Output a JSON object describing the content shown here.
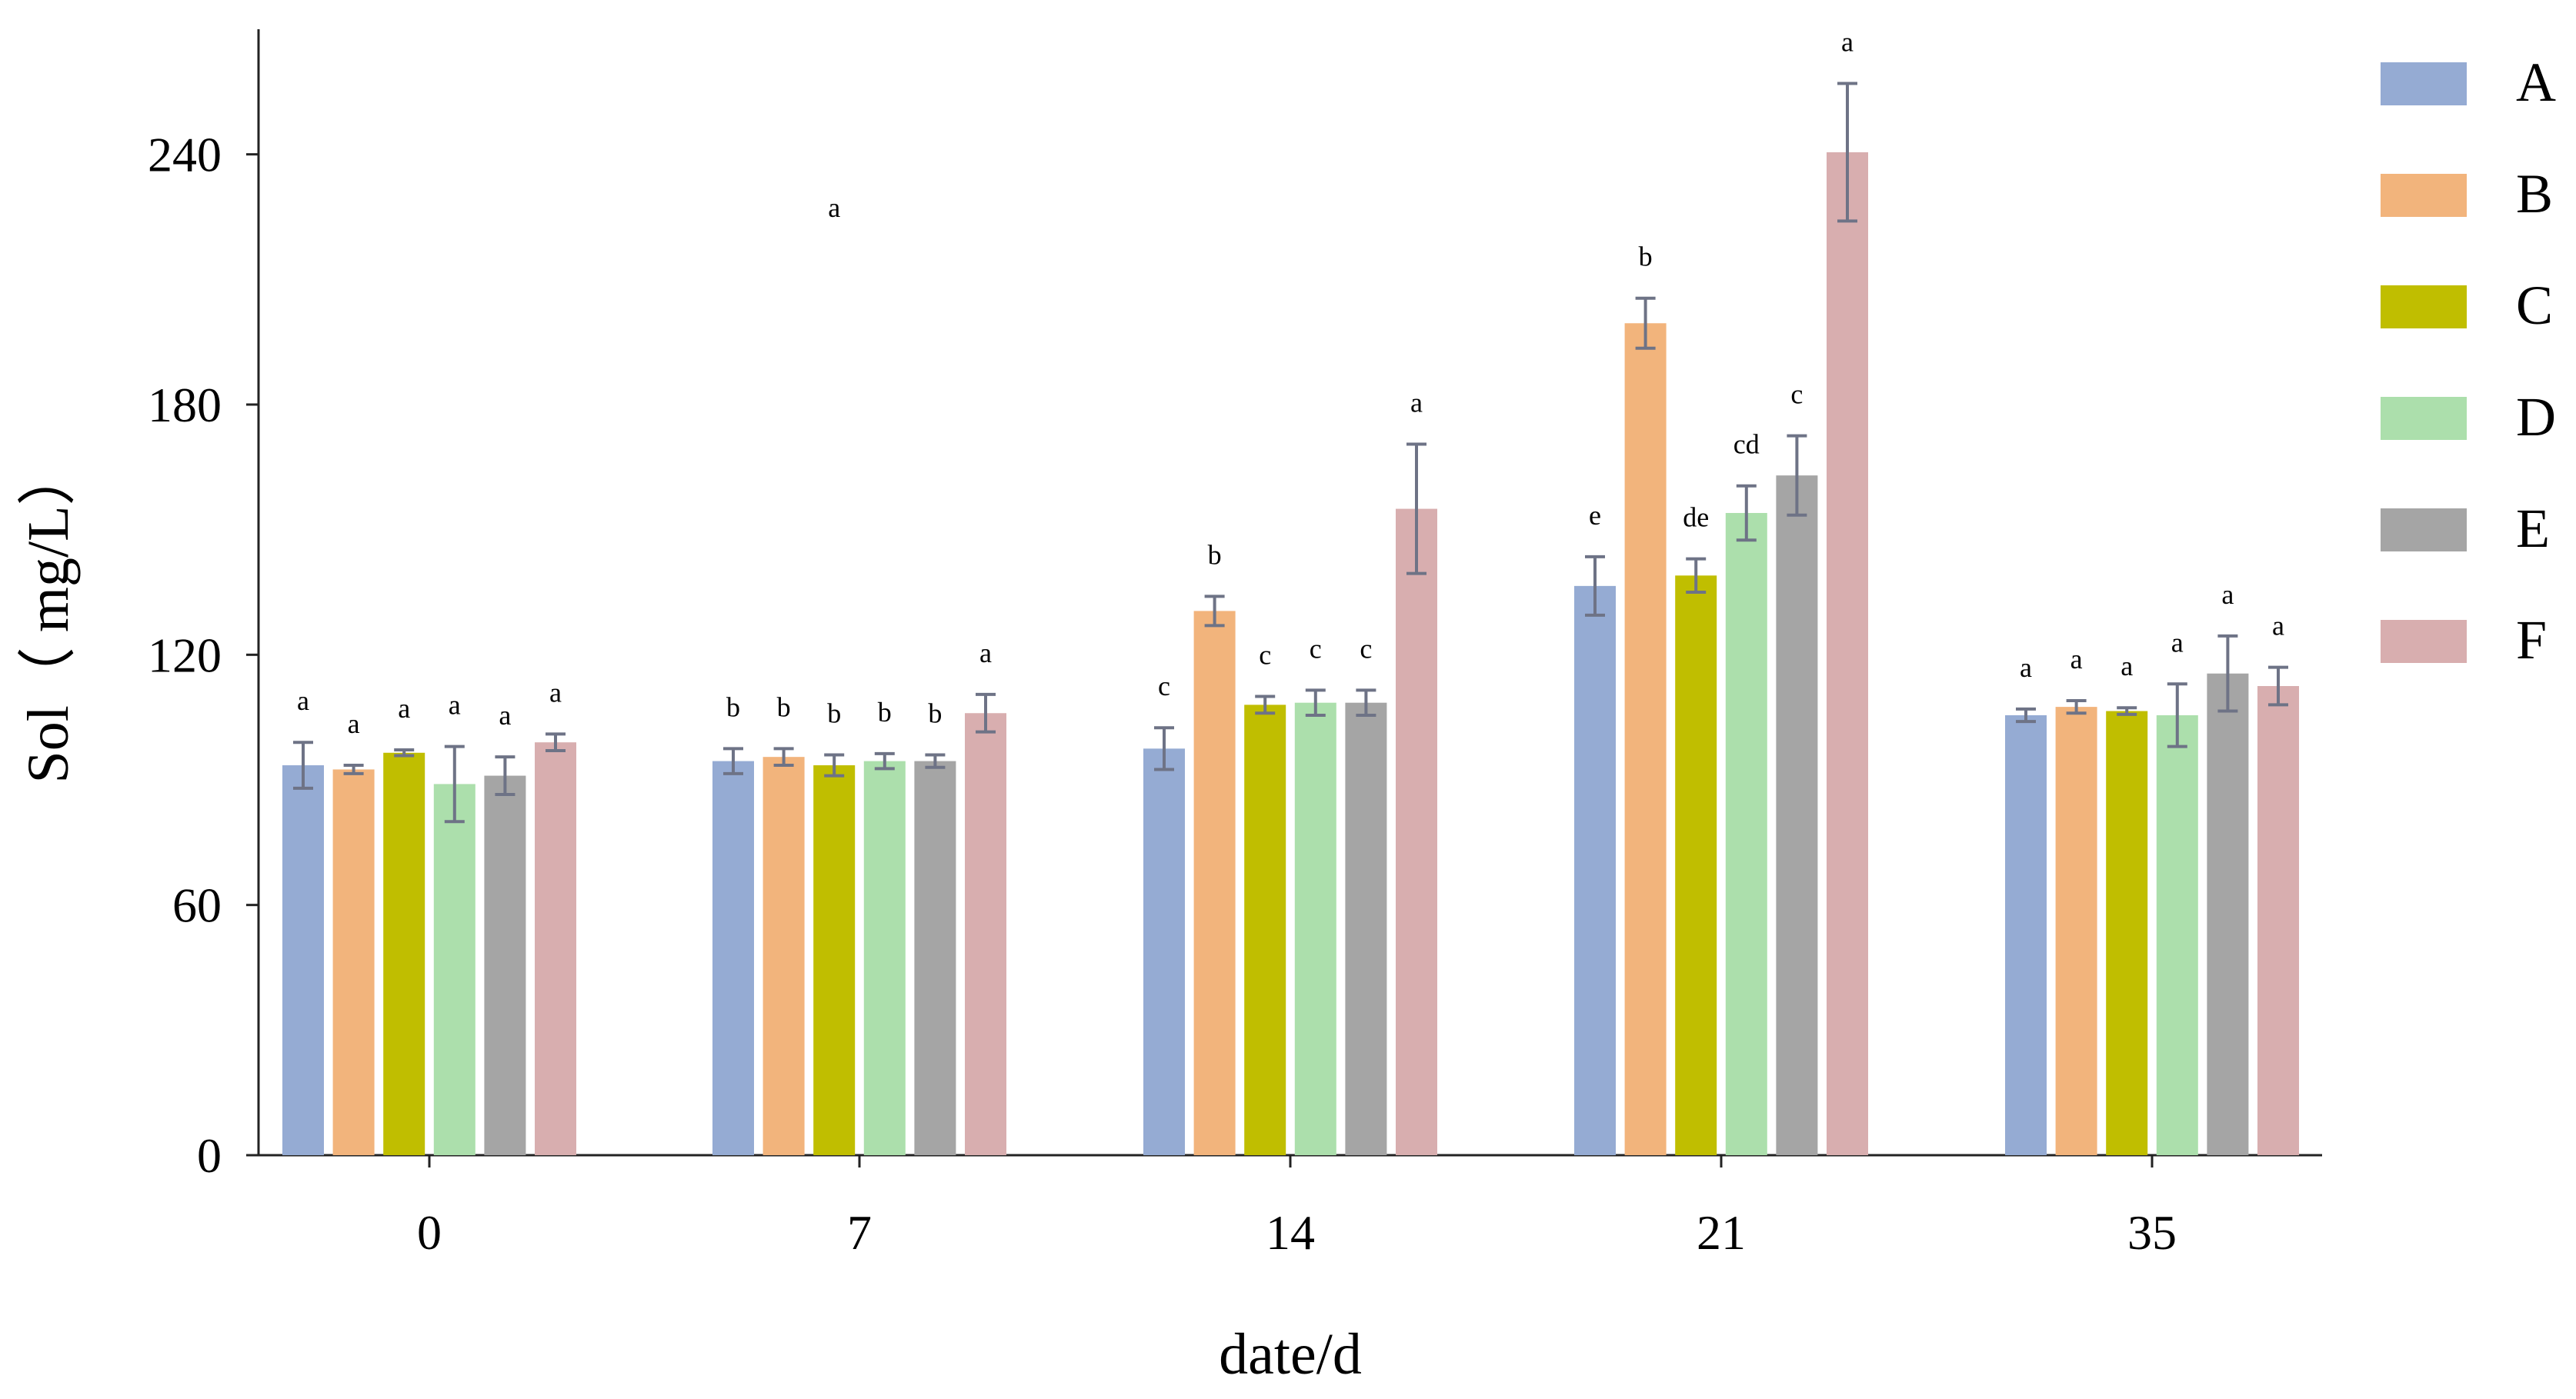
{
  "chart_data": {
    "type": "bar",
    "xlabel": "date/d",
    "ylabel": "Sol（ mg/L）",
    "ylim": [
      0,
      270
    ],
    "yticks": [
      0,
      60,
      120,
      180,
      240
    ],
    "categories": [
      "0",
      "7",
      "14",
      "21",
      "35"
    ],
    "grid": false,
    "legend_position": "right",
    "series": [
      {
        "name": "A",
        "color": "#95ABD3",
        "values": [
          93.5,
          94.5,
          97.5,
          136.5,
          105.5
        ],
        "errors": [
          5.5,
          3.0,
          5.0,
          7.0,
          1.5
        ],
        "sig": [
          "a",
          "b",
          "c",
          "e",
          "a"
        ]
      },
      {
        "name": "B",
        "color": "#F2B47C",
        "values": [
          92.5,
          95.5,
          130.5,
          199.5,
          107.5
        ],
        "errors": [
          1.0,
          2.0,
          3.5,
          6.0,
          1.5
        ],
        "sig": [
          "a",
          "b",
          "b",
          "b",
          "a"
        ]
      },
      {
        "name": "C",
        "color": "#C0BE00",
        "values": [
          96.5,
          93.5,
          108.0,
          139.0,
          106.5
        ],
        "errors": [
          0.7,
          2.5,
          2.0,
          4.0,
          0.8
        ],
        "sig": [
          "a",
          "b",
          "c",
          "de",
          "a"
        ]
      },
      {
        "name": "D",
        "color": "#ACDFAC",
        "values": [
          89.0,
          94.5,
          108.5,
          154.0,
          105.5
        ],
        "errors": [
          9.0,
          1.8,
          3.0,
          6.5,
          7.5
        ],
        "sig": [
          "a",
          "b",
          "c",
          "cd",
          "a"
        ]
      },
      {
        "name": "E",
        "color": "#A5A5A5",
        "values": [
          91.0,
          94.5,
          108.5,
          163.0,
          115.5
        ],
        "errors": [
          4.5,
          1.5,
          3.0,
          9.5,
          9.0
        ],
        "sig": [
          "a",
          "b",
          "c",
          "c",
          "a"
        ]
      },
      {
        "name": "F",
        "color": "#D8AEAF",
        "values": [
          99.0,
          106.0,
          155.0,
          240.5,
          112.5
        ],
        "errors": [
          2.0,
          4.5,
          15.5,
          16.5,
          4.5
        ],
        "sig": [
          "a",
          "a",
          "a",
          "a",
          "a"
        ]
      }
    ],
    "extra_annotations": [
      {
        "text": "a",
        "category": "7",
        "series": "C",
        "value": 225
      }
    ]
  }
}
